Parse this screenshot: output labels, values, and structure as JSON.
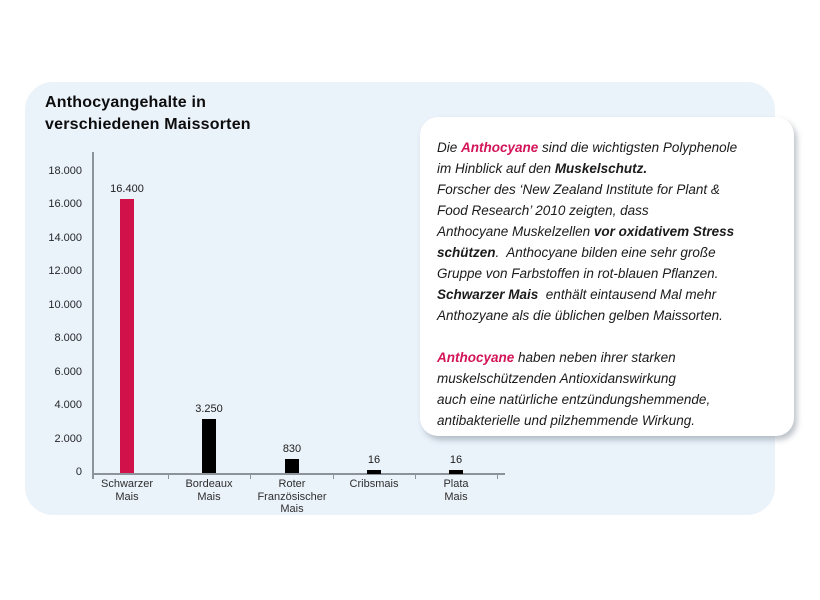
{
  "header": {
    "title_line1": "Anthocyangehalte in",
    "title_line2": "verschiedenen Maissorten"
  },
  "colors": {
    "panel_background": "#EAF2FA",
    "highlight_bar": "#D0114A",
    "default_bar": "#000000",
    "axis": "#8d939a",
    "accent_text": "#D31558"
  },
  "chart_data": {
    "type": "bar",
    "title": "Anthocyangehalte in verschiedenen Maissorten",
    "categories": [
      "Schwarzer\nMais",
      "Bordeaux\nMais",
      "Roter\nFranzösischer\nMais",
      "Cribsmais",
      "Plata\nMais"
    ],
    "values": [
      16400,
      3250,
      830,
      16,
      16
    ],
    "value_labels": [
      "16.400",
      "3.250",
      "830",
      "16",
      "16"
    ],
    "bar_colors": [
      "#D0114A",
      "#000000",
      "#000000",
      "#000000",
      "#000000"
    ],
    "xlabel": "",
    "ylabel": "",
    "ylim": [
      0,
      18000
    ],
    "ytick_step": 2000,
    "ytick_labels": [
      "0",
      "2.000",
      "4.000",
      "6.000",
      "8.000",
      "10.000",
      "12.000",
      "14.000",
      "16.000",
      "18.000"
    ],
    "grid": false,
    "legend": null
  },
  "infobox": {
    "paragraphs": [
      {
        "lines": [
          [
            {
              "t": "Die ",
              "s": "n"
            },
            {
              "t": "Anthocyane",
              "s": "rb"
            },
            {
              "t": " sind die wichtigsten Polyphenole",
              "s": "n"
            }
          ],
          [
            {
              "t": "im Hinblick auf den ",
              "s": "n"
            },
            {
              "t": "Muskelschutz.",
              "s": "b"
            }
          ],
          [
            {
              "t": "Forscher des ‘New Zealand Institute for Plant &",
              "s": "n"
            }
          ],
          [
            {
              "t": "Food Research’ 2010 zeigten, dass",
              "s": "n"
            }
          ],
          [
            {
              "t": "Anthocyane Muskelzellen ",
              "s": "n"
            },
            {
              "t": "vor oxidativem Stress",
              "s": "b"
            }
          ],
          [
            {
              "t": "schützen",
              "s": "b"
            },
            {
              "t": ".  Anthocyane bilden eine sehr große",
              "s": "n"
            }
          ],
          [
            {
              "t": "Gruppe von Farbstoffen in rot-blauen Pflanzen.",
              "s": "n"
            }
          ],
          [
            {
              "t": "Schwarzer Mais",
              "s": "b"
            },
            {
              "t": "  enthält eintausend Mal mehr",
              "s": "n"
            }
          ],
          [
            {
              "t": "Anthozyane als die üblichen gelben Maissorten.",
              "s": "n"
            }
          ]
        ]
      },
      {
        "lines": [
          [
            {
              "t": "Anthocyane",
              "s": "rb"
            },
            {
              "t": " haben neben ihrer starken",
              "s": "n"
            }
          ],
          [
            {
              "t": "muskelschützenden Antioxidanswirkung",
              "s": "n"
            }
          ],
          [
            {
              "t": "auch eine natürliche entzündungshemmende,",
              "s": "n"
            }
          ],
          [
            {
              "t": "antibakterielle und pilzhemmende Wirkung.",
              "s": "n"
            }
          ]
        ]
      }
    ]
  }
}
